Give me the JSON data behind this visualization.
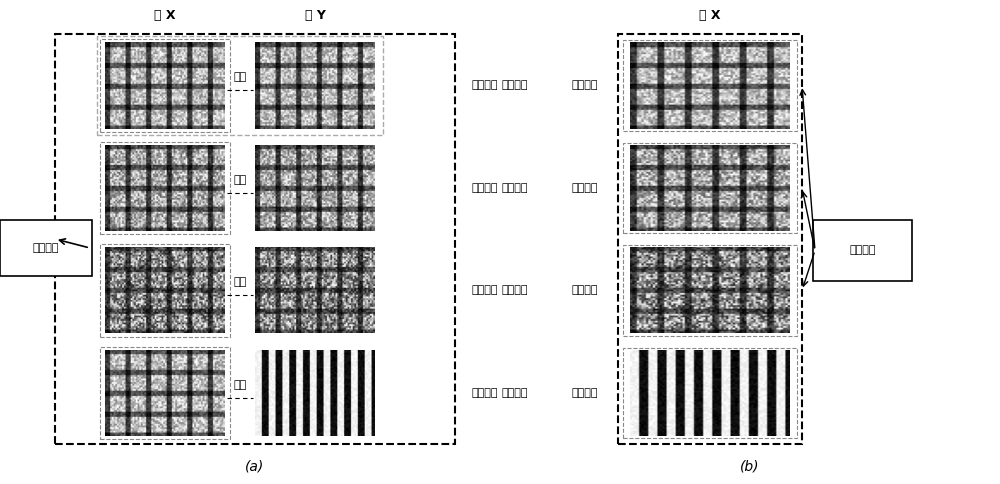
{
  "fig_width": 10.0,
  "fig_height": 4.84,
  "bg_color": "#ffffff",
  "label_a": "(a)",
  "label_b": "(b)",
  "title_yuan_x": "源 X",
  "title_yuan_y": "源 Y",
  "title_yuan_x_b": "源 X",
  "text_xiangjian": "源间噪声",
  "text_yuannei": "源内噪声",
  "text_xiangguan": "相关",
  "text_duoyuan": "多源数据",
  "text_danyuan": "单源数据",
  "rows": 4,
  "row_labels": [
    "多源数据",
    "多源数据",
    "多源数据",
    "多源数据"
  ],
  "row_labels_b": [
    "单源数据",
    "单源数据",
    "单源数据",
    "单源数据"
  ]
}
